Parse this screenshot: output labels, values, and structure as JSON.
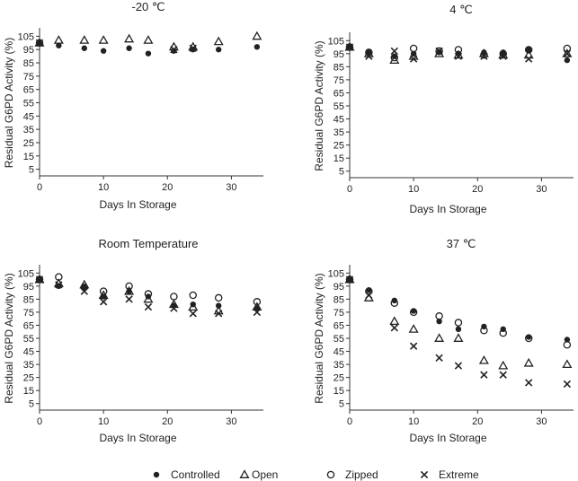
{
  "chart_data": [
    {
      "type": "scatter",
      "title": "-20 ℃",
      "xlabel": "Days In Storage",
      "ylabel": "Residual G6PD Activity (%)",
      "xlim": [
        0,
        35
      ],
      "ylim": [
        0,
        110
      ],
      "xticks": [
        0,
        10,
        20,
        30
      ],
      "yticks": [
        5,
        15,
        25,
        35,
        45,
        55,
        65,
        75,
        85,
        95,
        105
      ],
      "series": [
        {
          "name": "Controlled",
          "marker": "dot",
          "x": [
            0,
            3,
            7,
            10,
            14,
            17,
            21,
            24,
            28,
            34
          ],
          "y": [
            100,
            98,
            96,
            94,
            96,
            92,
            94,
            95,
            95,
            97
          ]
        },
        {
          "name": "Open",
          "marker": "triangle",
          "x": [
            0,
            3,
            7,
            10,
            14,
            17,
            21,
            24,
            28,
            34
          ],
          "y": [
            100,
            102,
            102,
            102,
            103,
            102,
            97,
            97,
            101,
            105
          ]
        },
        {
          "name": "Zipped",
          "marker": "circle",
          "x": [
            0
          ],
          "y": [
            100
          ]
        },
        {
          "name": "Extreme",
          "marker": "cross",
          "x": [
            0,
            21,
            24
          ],
          "y": [
            100,
            95,
            96
          ]
        }
      ]
    },
    {
      "type": "scatter",
      "title": "4 ℃",
      "xlabel": "Days In Storage",
      "ylabel": "Residual G6PD Activity (%)",
      "xlim": [
        0,
        35
      ],
      "ylim": [
        0,
        110
      ],
      "xticks": [
        0,
        10,
        20,
        30
      ],
      "yticks": [
        5,
        15,
        25,
        35,
        45,
        55,
        65,
        75,
        85,
        95,
        105
      ],
      "series": [
        {
          "name": "Controlled",
          "marker": "dot",
          "x": [
            0,
            3,
            7,
            10,
            14,
            17,
            21,
            24,
            28,
            34
          ],
          "y": [
            100,
            96,
            93,
            95,
            96,
            95,
            96,
            96,
            98,
            90
          ]
        },
        {
          "name": "Open",
          "marker": "triangle",
          "x": [
            0,
            3,
            7,
            10,
            14,
            17,
            21,
            24,
            28,
            34
          ],
          "y": [
            100,
            95,
            90,
            93,
            95,
            94,
            95,
            94,
            94,
            95
          ]
        },
        {
          "name": "Zipped",
          "marker": "circle",
          "x": [
            0,
            3,
            7,
            10,
            14,
            17,
            21,
            24,
            28,
            34
          ],
          "y": [
            100,
            96,
            92,
            99,
            97,
            98,
            94,
            95,
            98,
            99
          ]
        },
        {
          "name": "Extreme",
          "marker": "cross",
          "x": [
            0,
            3,
            7,
            10,
            14,
            17,
            21,
            24,
            28,
            34
          ],
          "y": [
            100,
            93,
            97,
            91,
            97,
            93,
            93,
            93,
            91,
            95
          ]
        }
      ]
    },
    {
      "type": "scatter",
      "title": "Room Temperature",
      "xlabel": "Days In Storage",
      "ylabel": "Residual G6PD Activity (%)",
      "xlim": [
        0,
        35
      ],
      "ylim": [
        0,
        110
      ],
      "xticks": [
        0,
        10,
        20,
        30
      ],
      "yticks": [
        5,
        15,
        25,
        35,
        45,
        55,
        65,
        75,
        85,
        95,
        105
      ],
      "series": [
        {
          "name": "Controlled",
          "marker": "dot",
          "x": [
            0,
            3,
            7,
            10,
            14,
            17,
            21,
            24,
            28,
            34
          ],
          "y": [
            100,
            95,
            94,
            87,
            91,
            87,
            80,
            81,
            80,
            78
          ]
        },
        {
          "name": "Open",
          "marker": "triangle",
          "x": [
            0,
            3,
            7,
            10,
            14,
            17,
            21,
            24,
            28,
            34
          ],
          "y": [
            100,
            97,
            96,
            88,
            91,
            85,
            81,
            79,
            76,
            79
          ]
        },
        {
          "name": "Zipped",
          "marker": "circle",
          "x": [
            0,
            3,
            7,
            10,
            14,
            17,
            21,
            24,
            28,
            34
          ],
          "y": [
            100,
            102,
            94,
            91,
            95,
            89,
            87,
            88,
            86,
            83
          ]
        },
        {
          "name": "Extreme",
          "marker": "cross",
          "x": [
            0,
            3,
            7,
            10,
            14,
            17,
            21,
            24,
            28,
            34
          ],
          "y": [
            100,
            96,
            91,
            83,
            85,
            79,
            78,
            74,
            74,
            75
          ]
        }
      ]
    },
    {
      "type": "scatter",
      "title": "37 ℃",
      "xlabel": "Days In Storage",
      "ylabel": "Residual G6PD Activity (%)",
      "xlim": [
        0,
        35
      ],
      "ylim": [
        0,
        110
      ],
      "xticks": [
        0,
        10,
        20,
        30
      ],
      "yticks": [
        5,
        15,
        25,
        35,
        45,
        55,
        65,
        75,
        85,
        95,
        105
      ],
      "series": [
        {
          "name": "Controlled",
          "marker": "dot",
          "x": [
            0,
            3,
            7,
            10,
            14,
            17,
            21,
            24,
            28,
            34
          ],
          "y": [
            100,
            92,
            84,
            76,
            68,
            62,
            64,
            62,
            56,
            54
          ]
        },
        {
          "name": "Open",
          "marker": "triangle",
          "x": [
            0,
            3,
            7,
            10,
            14,
            17,
            21,
            24,
            28,
            34
          ],
          "y": [
            100,
            86,
            68,
            62,
            55,
            55,
            38,
            34,
            36,
            35
          ]
        },
        {
          "name": "Zipped",
          "marker": "circle",
          "x": [
            0,
            3,
            7,
            10,
            14,
            17,
            21,
            24,
            28,
            34
          ],
          "y": [
            100,
            91,
            82,
            75,
            72,
            67,
            61,
            59,
            55,
            50
          ]
        },
        {
          "name": "Extreme",
          "marker": "cross",
          "x": [
            0,
            3,
            7,
            10,
            14,
            17,
            21,
            24,
            28,
            34
          ],
          "y": [
            100,
            88,
            63,
            49,
            40,
            34,
            27,
            27,
            21,
            20
          ]
        }
      ]
    }
  ],
  "legend": {
    "placement": "bottom-center",
    "items": [
      {
        "label": "Controlled",
        "marker": "dot"
      },
      {
        "label": "Open",
        "marker": "triangle"
      },
      {
        "label": "Zipped",
        "marker": "circle"
      },
      {
        "label": "Extreme",
        "marker": "cross"
      }
    ]
  },
  "colors": {
    "marker": "#222222",
    "axis": "#333333"
  }
}
